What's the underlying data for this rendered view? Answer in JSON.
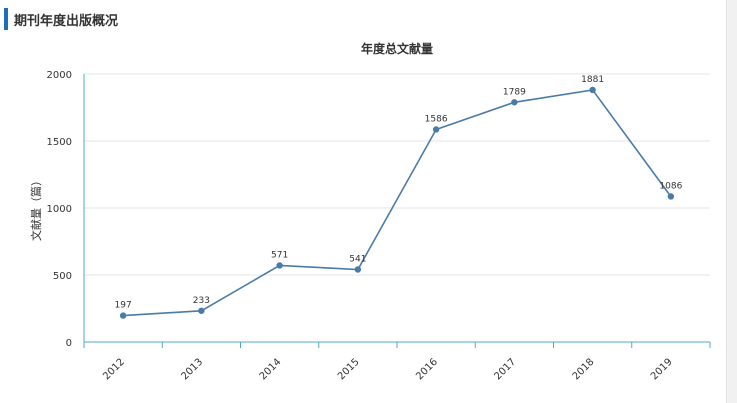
{
  "header": {
    "title": "期刊年度出版概况"
  },
  "colors": {
    "accent": "#1a70b8",
    "series_line": "#4a7ba7",
    "axis": "#4bacc6",
    "grid": "#e6e6e6"
  },
  "chart_data": {
    "type": "line",
    "title": "年度总文献量",
    "xlabel": "",
    "ylabel": "文献量（篇）",
    "categories": [
      "2012",
      "2013",
      "2014",
      "2015",
      "2016",
      "2017",
      "2018",
      "2019"
    ],
    "series": [
      {
        "values": [
          197,
          233,
          571,
          541,
          1586,
          1789,
          1881,
          1086
        ]
      }
    ],
    "ylim": [
      0,
      2000
    ],
    "yticks": [
      0,
      500,
      1000,
      1500,
      2000
    ],
    "grid": true,
    "data_labels": true,
    "legend": "none"
  }
}
